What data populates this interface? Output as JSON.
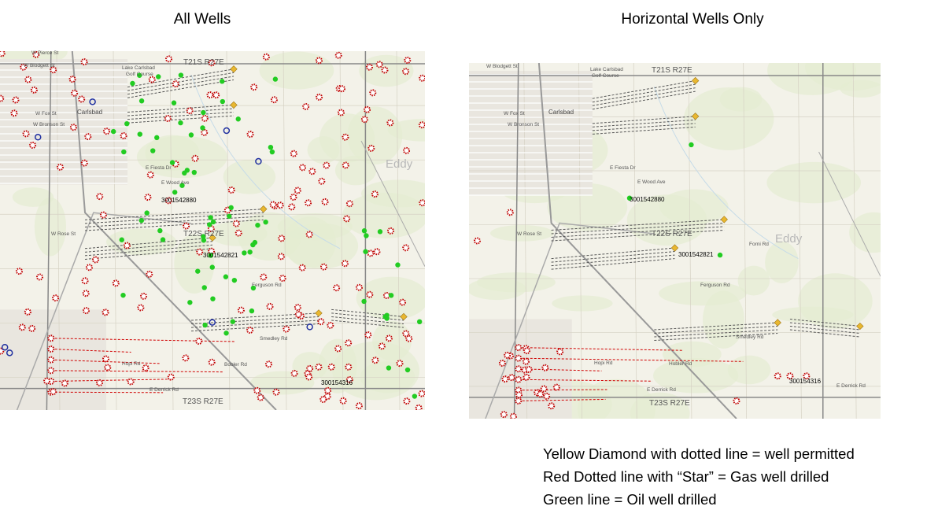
{
  "titles": [
    "All Wells",
    "Horizontal Wells Only"
  ],
  "maps": [
    {
      "labels": [
        "W Pierce St",
        "W Blodgett St",
        "T21S R27E",
        "Lake Carlsbad",
        "Golf Course",
        "W Fox St",
        "W Bronson St",
        "Carlsbad",
        "E Fiesta Dr",
        "E Wood Ave",
        "3001542880",
        "W Rose St",
        "T22S R27E",
        "3001542821",
        "Ferguson Rd",
        "Smedley Rd",
        "Hopi Rd",
        "Bobler Rd",
        "E Derrick Rd",
        "T23S R27E",
        "300154316",
        "Eddy"
      ]
    },
    {
      "labels": [
        "W Blodgett St",
        "T21S R27E",
        "Lake Carlsbad",
        "Golf Course",
        "W Fox St",
        "W Bronson St",
        "Carlsbad",
        "E Fiesta Dr",
        "E Wood Ave",
        "3001542880",
        "W Rose St",
        "T22S R27E",
        "Forni Rd",
        "Eddy",
        "3001542821",
        "Ferguson Rd",
        "Smedley Rd",
        "Hopi Rd",
        "Hobler Rd",
        "E Derrick Rd",
        "T23S R27E",
        "300154316",
        "E Derrick Rd"
      ]
    }
  ],
  "legend": [
    "Yellow Diamond with dotted line = well permitted",
    "Red Dotted line with “Star” = Gas well drilled",
    "Green line = Oil well drilled"
  ]
}
